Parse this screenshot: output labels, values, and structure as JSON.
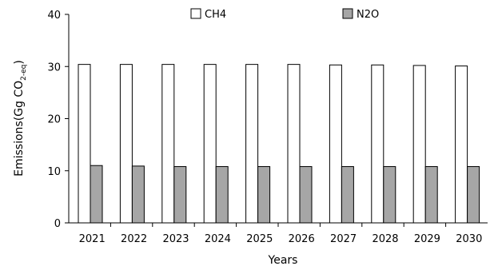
{
  "chart_data": {
    "type": "bar",
    "categories": [
      "2021",
      "2022",
      "2023",
      "2024",
      "2025",
      "2026",
      "2027",
      "2028",
      "2029",
      "2030"
    ],
    "series": [
      {
        "name": "CH4",
        "color": "#ffffff",
        "values": [
          30.4,
          30.4,
          30.4,
          30.4,
          30.4,
          30.4,
          30.3,
          30.3,
          30.2,
          30.1
        ]
      },
      {
        "name": "N2O",
        "color": "#a6a6a6",
        "values": [
          11.0,
          10.9,
          10.8,
          10.8,
          10.8,
          10.8,
          10.8,
          10.8,
          10.8,
          10.8
        ]
      }
    ],
    "xlabel": "Years",
    "ylabel": {
      "main": "Emissions(Gg CO",
      "sub": "2-eq",
      "close": ")"
    },
    "ylim": [
      0,
      40
    ],
    "yticks": [
      0,
      10,
      20,
      30,
      40
    ],
    "grid": false,
    "legend_position": "top-center"
  }
}
